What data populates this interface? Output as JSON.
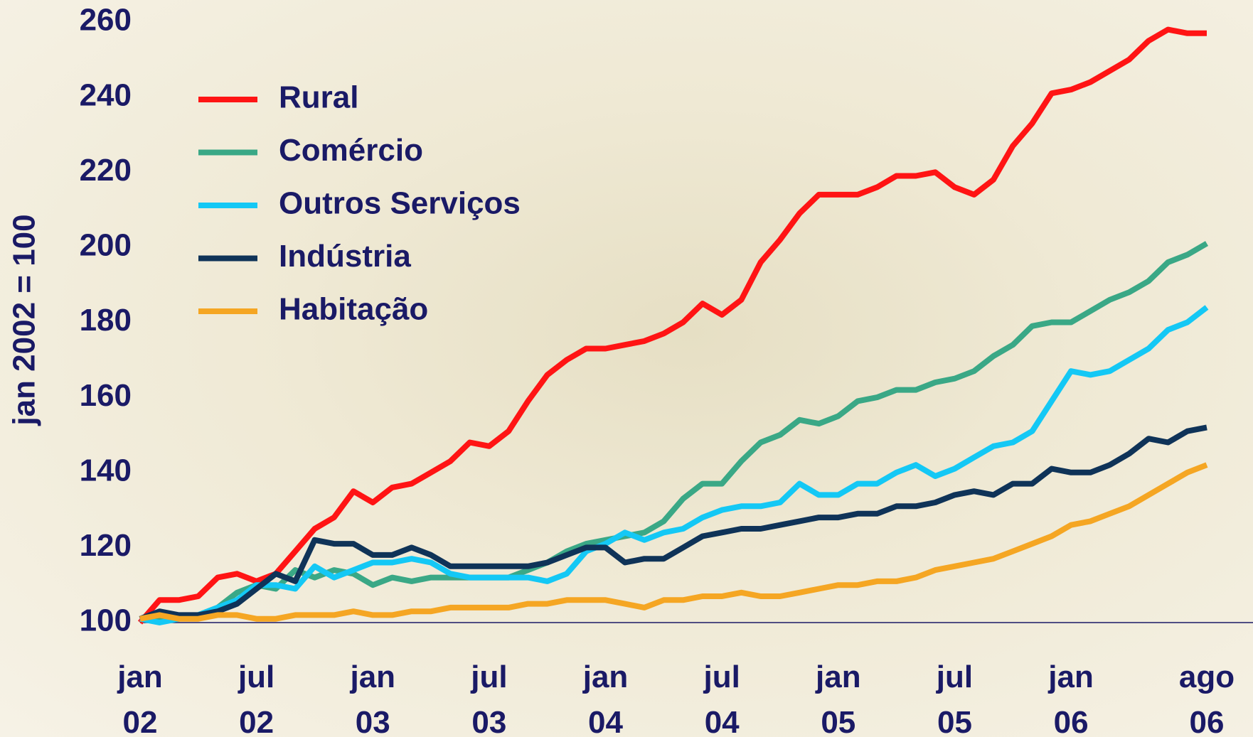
{
  "chart_data": {
    "type": "line",
    "y_label": "jan 2002 = 100",
    "categories": [
      "jan 02",
      null,
      null,
      null,
      null,
      null,
      "jul 02",
      null,
      null,
      null,
      null,
      null,
      "jan 03",
      null,
      null,
      null,
      null,
      null,
      "jul 03",
      null,
      null,
      null,
      null,
      null,
      "jan 04",
      null,
      null,
      null,
      null,
      null,
      "jul 04",
      null,
      null,
      null,
      null,
      null,
      "jan 05",
      null,
      null,
      null,
      null,
      null,
      "jul 05",
      null,
      null,
      null,
      null,
      null,
      "jan 06",
      null,
      null,
      null,
      null,
      null,
      null,
      "ago 06"
    ],
    "ylim": [
      100,
      260
    ],
    "yticks": [
      100,
      120,
      140,
      160,
      180,
      200,
      220,
      240,
      260
    ],
    "legend": "upper-left",
    "series": [
      {
        "name": "Rural",
        "color": "#ff1414",
        "values": [
          100,
          106,
          106,
          107,
          112,
          113,
          111,
          113,
          119,
          125,
          128,
          135,
          132,
          136,
          137,
          140,
          143,
          148,
          147,
          151,
          159,
          166,
          170,
          173,
          173,
          174,
          175,
          177,
          180,
          185,
          182,
          186,
          196,
          202,
          209,
          214,
          214,
          214,
          216,
          219,
          219,
          220,
          216,
          214,
          218,
          227,
          233,
          241,
          242,
          244,
          247,
          250,
          255,
          258,
          257,
          257
        ]
      },
      {
        "name": "Comércio",
        "color": "#3aa886",
        "values": [
          101,
          101,
          101,
          102,
          104,
          108,
          110,
          109,
          114,
          112,
          114,
          113,
          110,
          112,
          111,
          112,
          112,
          112,
          112,
          112,
          114,
          116,
          119,
          121,
          122,
          123,
          124,
          127,
          133,
          137,
          137,
          143,
          148,
          150,
          154,
          153,
          155,
          159,
          160,
          162,
          162,
          164,
          165,
          167,
          171,
          174,
          179,
          180,
          180,
          183,
          186,
          188,
          191,
          196,
          198,
          201
        ]
      },
      {
        "name": "Outros Serviços",
        "color": "#14c8f5",
        "values": [
          101,
          100,
          101,
          102,
          104,
          106,
          110,
          110,
          109,
          115,
          112,
          114,
          116,
          116,
          117,
          116,
          113,
          112,
          112,
          112,
          112,
          111,
          113,
          119,
          121,
          124,
          122,
          124,
          125,
          128,
          130,
          131,
          131,
          132,
          137,
          134,
          134,
          137,
          137,
          140,
          142,
          139,
          141,
          144,
          147,
          148,
          151,
          159,
          167,
          166,
          167,
          170,
          173,
          178,
          180,
          184
        ]
      },
      {
        "name": "Indústria",
        "color": "#0f3358",
        "values": [
          101,
          103,
          102,
          102,
          103,
          105,
          109,
          113,
          111,
          122,
          121,
          121,
          118,
          118,
          120,
          118,
          115,
          115,
          115,
          115,
          115,
          116,
          118,
          120,
          120,
          116,
          117,
          117,
          120,
          123,
          124,
          125,
          125,
          126,
          127,
          128,
          128,
          129,
          129,
          131,
          131,
          132,
          134,
          135,
          134,
          137,
          137,
          141,
          140,
          140,
          142,
          145,
          149,
          148,
          151,
          152
        ]
      },
      {
        "name": "Habitação",
        "color": "#f5a623",
        "values": [
          101,
          102,
          101,
          101,
          102,
          102,
          101,
          101,
          102,
          102,
          102,
          103,
          102,
          102,
          103,
          103,
          104,
          104,
          104,
          104,
          105,
          105,
          106,
          106,
          106,
          105,
          104,
          106,
          106,
          107,
          107,
          108,
          107,
          107,
          108,
          109,
          110,
          110,
          111,
          111,
          112,
          114,
          115,
          116,
          117,
          119,
          121,
          123,
          126,
          127,
          129,
          131,
          134,
          137,
          140,
          142
        ]
      }
    ]
  }
}
